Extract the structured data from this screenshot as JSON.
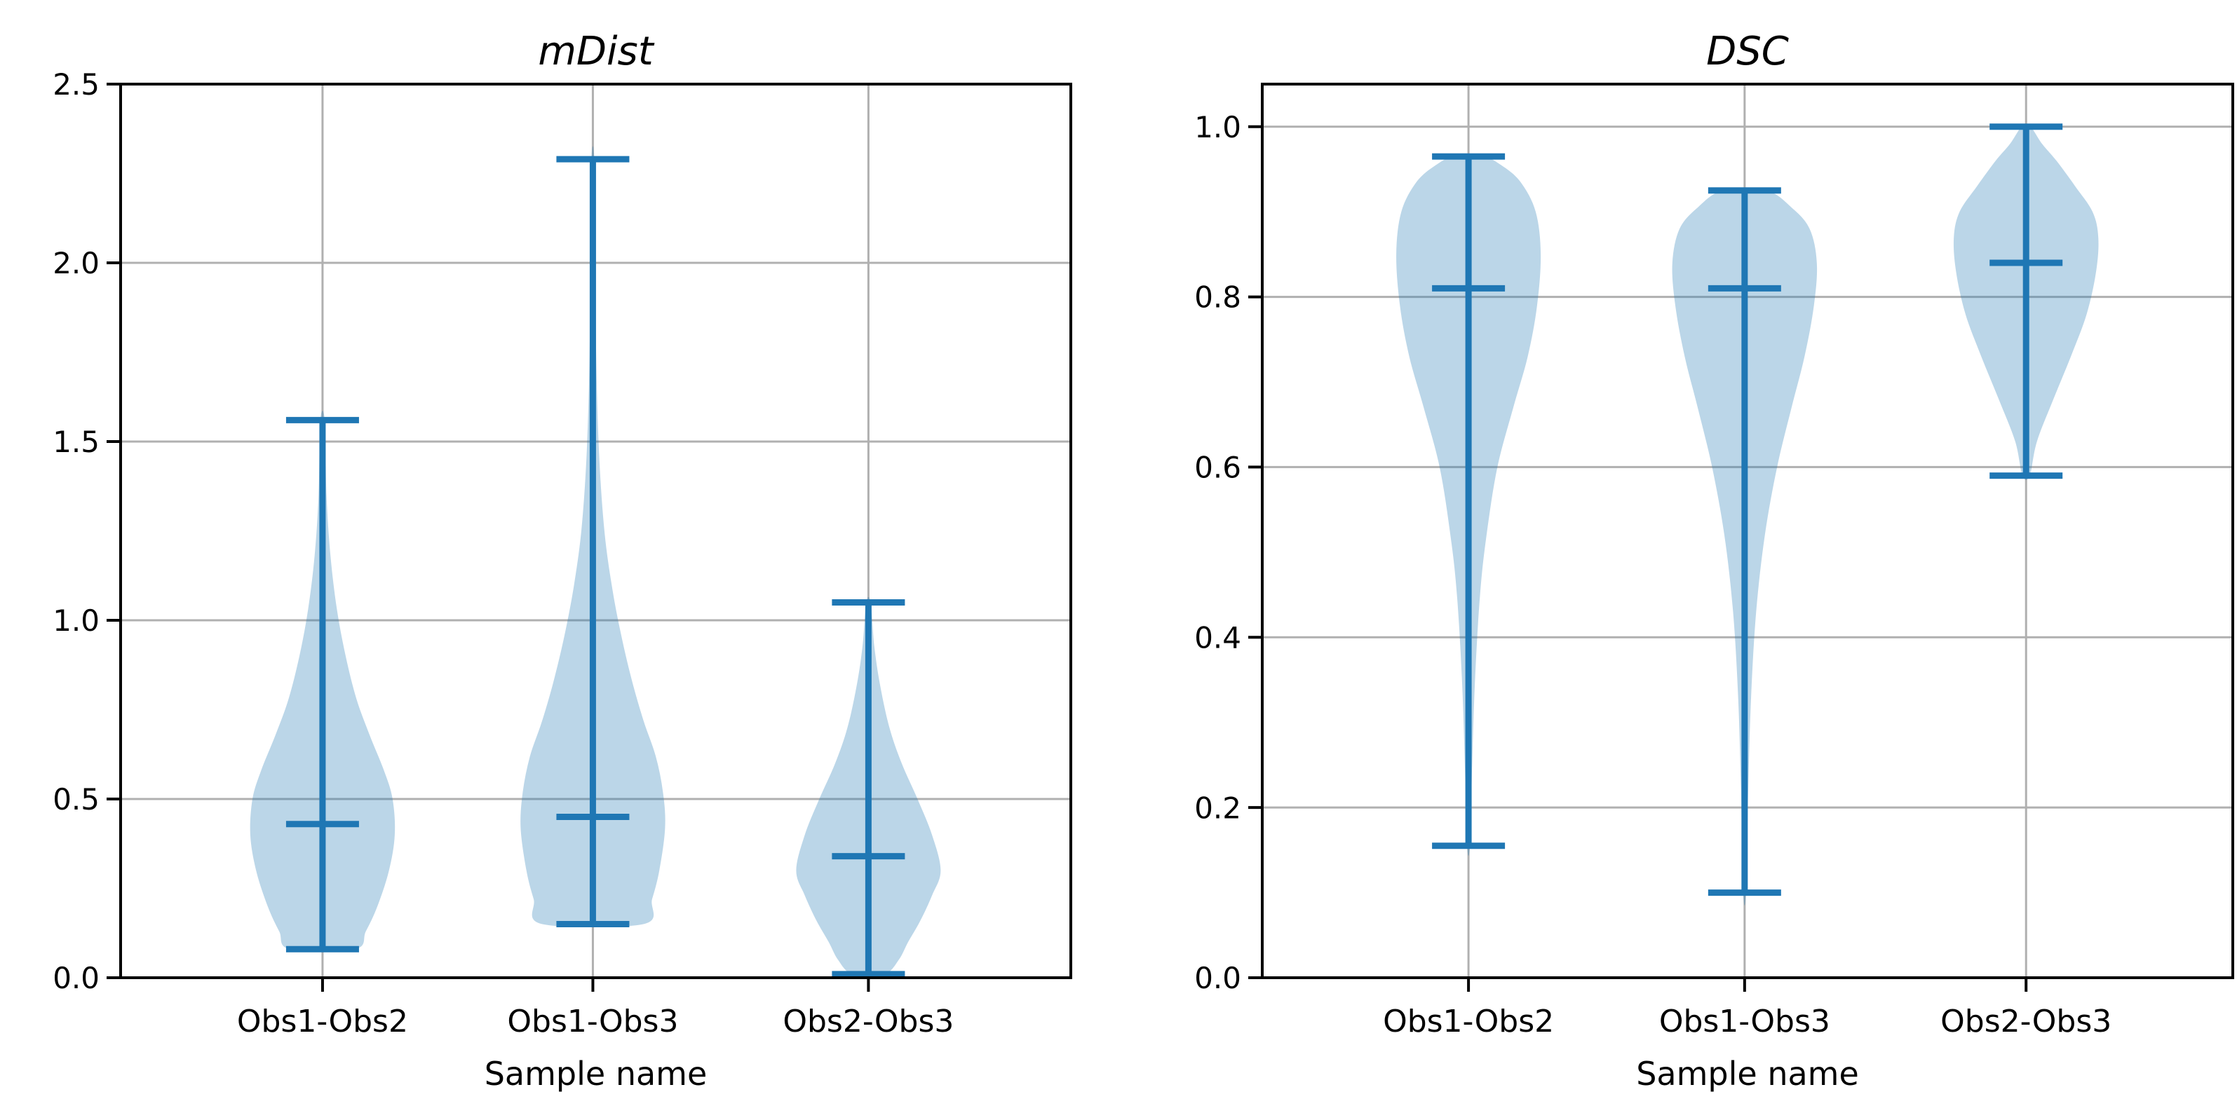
{
  "figure": {
    "background": "#ffffff"
  },
  "style": {
    "violin_fill": "#1f77b4",
    "violin_fill_opacity": 0.3,
    "line_color": "#1f77b4",
    "grid_color": "#b0b0b0",
    "spine_color": "#000000",
    "text_color": "#000000"
  },
  "chart_data": [
    {
      "type": "violin",
      "title": "mDist",
      "xlabel": "Sample name",
      "categories": [
        "Obs1-Obs2",
        "Obs1-Obs3",
        "Obs2-Obs3"
      ],
      "ylim": [
        0,
        2.5
      ],
      "yticks": [
        0.0,
        0.5,
        1.0,
        1.5,
        2.0,
        2.5
      ],
      "ytick_labels": [
        "0.0",
        "0.5",
        "1.0",
        "1.5",
        "2.0",
        "2.5"
      ],
      "grid": true,
      "series": [
        {
          "name": "Obs1-Obs2",
          "min": 0.08,
          "max": 1.56,
          "median": 0.43,
          "profile": [
            [
              0.08,
              0.45
            ],
            [
              0.13,
              0.6
            ],
            [
              0.2,
              0.76
            ],
            [
              0.3,
              0.92
            ],
            [
              0.4,
              1.0
            ],
            [
              0.5,
              0.97
            ],
            [
              0.58,
              0.85
            ],
            [
              0.68,
              0.65
            ],
            [
              0.78,
              0.47
            ],
            [
              0.9,
              0.32
            ],
            [
              1.03,
              0.2
            ],
            [
              1.18,
              0.11
            ],
            [
              1.35,
              0.055
            ],
            [
              1.56,
              0.03
            ]
          ]
        },
        {
          "name": "Obs1-Obs3",
          "min": 0.15,
          "max": 2.29,
          "median": 0.45,
          "profile": [
            [
              0.15,
              0.7
            ],
            [
              0.22,
              0.82
            ],
            [
              0.3,
              0.92
            ],
            [
              0.42,
              1.0
            ],
            [
              0.52,
              0.97
            ],
            [
              0.62,
              0.87
            ],
            [
              0.72,
              0.7
            ],
            [
              0.84,
              0.53
            ],
            [
              0.97,
              0.38
            ],
            [
              1.1,
              0.26
            ],
            [
              1.25,
              0.16
            ],
            [
              1.45,
              0.09
            ],
            [
              1.7,
              0.05
            ],
            [
              2.0,
              0.03
            ],
            [
              2.29,
              0.02
            ]
          ]
        },
        {
          "name": "Obs2-Obs3",
          "min": 0.01,
          "max": 1.05,
          "median": 0.34,
          "profile": [
            [
              0.01,
              0.22
            ],
            [
              0.05,
              0.42
            ],
            [
              0.1,
              0.55
            ],
            [
              0.16,
              0.72
            ],
            [
              0.23,
              0.88
            ],
            [
              0.3,
              1.0
            ],
            [
              0.4,
              0.88
            ],
            [
              0.5,
              0.68
            ],
            [
              0.6,
              0.46
            ],
            [
              0.7,
              0.29
            ],
            [
              0.82,
              0.16
            ],
            [
              0.93,
              0.08
            ],
            [
              1.05,
              0.03
            ]
          ]
        }
      ]
    },
    {
      "type": "violin",
      "title": "DSC",
      "xlabel": "Sample name",
      "categories": [
        "Obs1-Obs2",
        "Obs1-Obs3",
        "Obs2-Obs3"
      ],
      "ylim": [
        0,
        1.05
      ],
      "yticks": [
        0.0,
        0.2,
        0.4,
        0.6,
        0.8,
        1.0
      ],
      "ytick_labels": [
        "0.0",
        "0.2",
        "0.4",
        "0.6",
        "0.8",
        "1.0"
      ],
      "grid": true,
      "series": [
        {
          "name": "Obs1-Obs2",
          "min": 0.155,
          "max": 0.965,
          "median": 0.81,
          "profile": [
            [
              0.155,
              0.02
            ],
            [
              0.25,
              0.05
            ],
            [
              0.35,
              0.09
            ],
            [
              0.45,
              0.16
            ],
            [
              0.52,
              0.25
            ],
            [
              0.6,
              0.4
            ],
            [
              0.67,
              0.62
            ],
            [
              0.73,
              0.82
            ],
            [
              0.79,
              0.95
            ],
            [
              0.85,
              1.0
            ],
            [
              0.9,
              0.93
            ],
            [
              0.935,
              0.72
            ],
            [
              0.955,
              0.45
            ],
            [
              0.965,
              0.2
            ]
          ]
        },
        {
          "name": "Obs1-Obs3",
          "min": 0.1,
          "max": 0.925,
          "median": 0.81,
          "profile": [
            [
              0.1,
              0.02
            ],
            [
              0.22,
              0.05
            ],
            [
              0.33,
              0.09
            ],
            [
              0.43,
              0.16
            ],
            [
              0.52,
              0.28
            ],
            [
              0.6,
              0.45
            ],
            [
              0.67,
              0.65
            ],
            [
              0.73,
              0.83
            ],
            [
              0.79,
              0.96
            ],
            [
              0.84,
              1.0
            ],
            [
              0.88,
              0.9
            ],
            [
              0.905,
              0.65
            ],
            [
              0.925,
              0.3
            ]
          ]
        },
        {
          "name": "Obs2-Obs3",
          "min": 0.59,
          "max": 1.0,
          "median": 0.84,
          "profile": [
            [
              0.59,
              0.05
            ],
            [
              0.63,
              0.15
            ],
            [
              0.68,
              0.38
            ],
            [
              0.73,
              0.62
            ],
            [
              0.78,
              0.84
            ],
            [
              0.83,
              0.97
            ],
            [
              0.87,
              1.0
            ],
            [
              0.9,
              0.92
            ],
            [
              0.93,
              0.68
            ],
            [
              0.96,
              0.42
            ],
            [
              0.98,
              0.22
            ],
            [
              1.0,
              0.06
            ]
          ]
        }
      ]
    }
  ]
}
